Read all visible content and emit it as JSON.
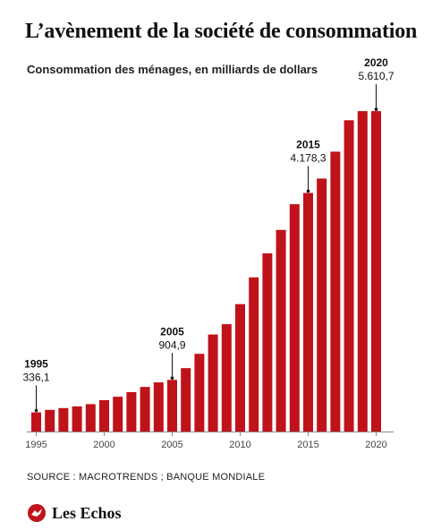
{
  "title": "L’avènement de la société de consommation",
  "subtitle": "Consommation des ménages, en milliards de dollars",
  "source": "SOURCE : MACROTRENDS ; BANQUE MONDIALE",
  "brand": "Les Echos",
  "colors": {
    "bar": "#c0121a",
    "axis": "#888888",
    "text": "#111111"
  },
  "chart_data": {
    "type": "bar",
    "categories": [
      1995,
      1996,
      1997,
      1998,
      1999,
      2000,
      2001,
      2002,
      2003,
      2004,
      2005,
      2006,
      2007,
      2008,
      2009,
      2010,
      2011,
      2012,
      2013,
      2014,
      2015,
      2016,
      2017,
      2018,
      2019,
      2020
    ],
    "values": [
      336.1,
      380,
      410,
      440,
      480,
      550,
      610,
      690,
      780,
      860,
      904.9,
      1110,
      1360,
      1700,
      1880,
      2230,
      2700,
      3120,
      3530,
      3980,
      4178.3,
      4430,
      4900,
      5450,
      5610,
      5610.7
    ],
    "xticks": [
      1995,
      2000,
      2005,
      2010,
      2015,
      2020
    ],
    "ylim": [
      0,
      5800
    ],
    "grid": false,
    "annotations": [
      {
        "year": "1995",
        "value": "336,1",
        "index": 0
      },
      {
        "year": "2005",
        "value": "904,9",
        "index": 10
      },
      {
        "year": "2015",
        "value": "4.178,3",
        "index": 20
      },
      {
        "year": "2020",
        "value": "5.610,7",
        "index": 25
      }
    ]
  }
}
